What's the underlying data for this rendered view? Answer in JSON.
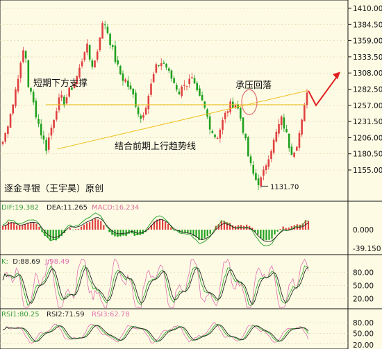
{
  "chart_data": [
    {
      "type": "candlestick",
      "panel": "price",
      "yticks": [
        "1410.00",
        "1384.50",
        "1359.00",
        "1333.50",
        "1308.00",
        "1282.50",
        "1257.00",
        "1231.50",
        "1206.00",
        "1180.50",
        "1155.00"
      ],
      "ylim": [
        1125,
        1418
      ],
      "annotations": {
        "short_support": "短期下方支撑",
        "resistance_pullback": "承压回落",
        "trendline": "结合前期上行趋势线",
        "low_label": "1131.70",
        "watermark": "逐金寻银（王宇昊）原创"
      },
      "horizontal_line": {
        "value": 1258
      },
      "trend_line": {
        "from_value": 1188,
        "to_value": 1280
      },
      "close_path": [
        1200,
        1218,
        1245,
        1262,
        1300,
        1320,
        1355,
        1290,
        1270,
        1248,
        1225,
        1205,
        1190,
        1212,
        1236,
        1258,
        1268,
        1262,
        1275,
        1285,
        1295,
        1310,
        1332,
        1355,
        1330,
        1318,
        1340,
        1375,
        1390,
        1372,
        1350,
        1330,
        1312,
        1300,
        1296,
        1282,
        1272,
        1255,
        1235,
        1250,
        1268,
        1290,
        1312,
        1322,
        1325,
        1320,
        1305,
        1296,
        1285,
        1275,
        1295,
        1290,
        1300,
        1284,
        1270,
        1262,
        1248,
        1228,
        1214,
        1205,
        1220,
        1236,
        1250,
        1258,
        1262,
        1250,
        1230,
        1200,
        1170,
        1150,
        1138,
        1135,
        1150,
        1172,
        1188,
        1202,
        1222,
        1235,
        1218,
        1195,
        1182,
        1195,
        1215,
        1240,
        1282
      ]
    },
    {
      "type": "bar+line",
      "panel": "macd",
      "legend": [
        {
          "text": "DIF:19.382",
          "color": "#3b9c3b"
        },
        {
          "text": "DEA:11.265",
          "color": "#222222"
        },
        {
          "text": "MACD:16.234",
          "color": "#e0709a"
        }
      ],
      "yticks": [
        "0.000",
        "-39.150"
      ]
    },
    {
      "type": "line",
      "panel": "kdj",
      "legend": [
        {
          "text": "K:",
          "color": "#3b9c3b"
        },
        {
          "text": "D:88.69",
          "color": "#222222"
        },
        {
          "text": "J:98.49",
          "color": "#e070b0"
        }
      ],
      "yticks": [
        "80.00",
        "50.00",
        "20.00"
      ]
    },
    {
      "type": "line",
      "panel": "rsi",
      "legend": [
        {
          "text": "RSI1:80.25",
          "color": "#3b9c3b"
        },
        {
          "text": "RSI2:71.59",
          "color": "#222222"
        },
        {
          "text": "RSI3:62.78",
          "color": "#e070b0"
        }
      ],
      "yticks": [
        "80.00",
        "50.00",
        "20.00"
      ]
    }
  ],
  "colors": {
    "up": "#e04040",
    "down": "#20a020",
    "yellow": "#f0c020",
    "arrow": "#e02020",
    "circle": "#e07070",
    "bg": "#fdfbe4",
    "grid": "#d8d2a0"
  }
}
